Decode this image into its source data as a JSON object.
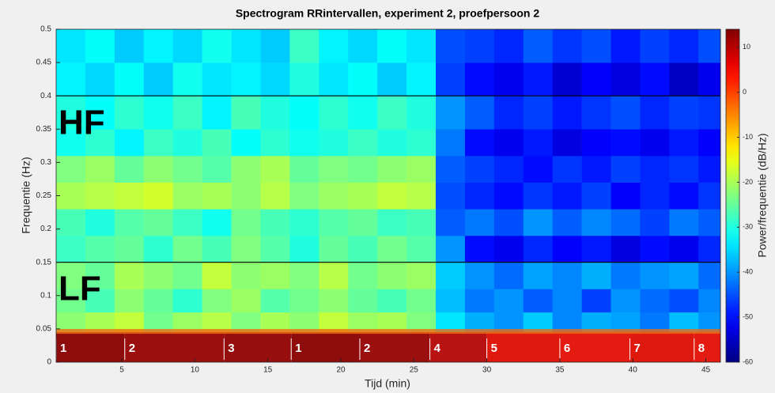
{
  "chart_data": {
    "type": "heatmap",
    "title": "Spectrogram RRintervallen, experiment 2, proefpersoon 2",
    "xlabel": "Tijd (min)",
    "ylabel": "Frequentie (Hz)",
    "colorbar_label": "Power/frequentie (dB/Hz)",
    "colormap": "jet",
    "xlim": [
      0.5,
      46
    ],
    "ylim": [
      0,
      0.5
    ],
    "clim": [
      -60,
      14
    ],
    "xticks": [
      5,
      10,
      15,
      20,
      25,
      30,
      35,
      40,
      45
    ],
    "yticks": [
      0,
      0.05,
      0.1,
      0.15,
      0.2,
      0.25,
      0.3,
      0.35,
      0.4,
      0.45,
      0.5
    ],
    "cticks": [
      -60,
      -50,
      -40,
      -30,
      -20,
      -10,
      0,
      10
    ],
    "xbins": [
      0.5,
      2.5,
      4.5,
      6.5,
      8.5,
      10.5,
      12.5,
      14.5,
      16.5,
      18.5,
      20.5,
      22.5,
      24.5,
      26.5,
      28.5,
      30.5,
      32.5,
      34.5,
      36.5,
      38.5,
      40.5,
      42.5,
      44.5,
      46
    ],
    "ybins": [
      0.045,
      0.075,
      0.11,
      0.15,
      0.19,
      0.23,
      0.27,
      0.31,
      0.35,
      0.4,
      0.45,
      0.5
    ],
    "z": [
      [
        -22,
        -20,
        -18,
        -24,
        -21,
        -19,
        -23,
        -20,
        -22,
        -18,
        -21,
        -20,
        -23,
        -34,
        -38,
        -40,
        -36,
        -41,
        -38,
        -39,
        -42,
        -37,
        -40
      ],
      [
        -24,
        -27,
        -22,
        -25,
        -29,
        -23,
        -21,
        -26,
        -24,
        -22,
        -25,
        -27,
        -24,
        -37,
        -42,
        -40,
        -44,
        -41,
        -46,
        -40,
        -43,
        -45,
        -41
      ],
      [
        -23,
        -25,
        -20,
        -22,
        -24,
        -18,
        -22,
        -21,
        -23,
        -19,
        -24,
        -22,
        -21,
        -36,
        -40,
        -43,
        -39,
        -41,
        -38,
        -42,
        -40,
        -39,
        -43
      ],
      [
        -28,
        -26,
        -25,
        -29,
        -24,
        -27,
        -23,
        -26,
        -30,
        -25,
        -27,
        -24,
        -26,
        -40,
        -50,
        -52,
        -48,
        -51,
        -49,
        -53,
        -50,
        -52,
        -48
      ],
      [
        -27,
        -30,
        -26,
        -25,
        -28,
        -31,
        -24,
        -27,
        -29,
        -26,
        -25,
        -28,
        -27,
        -44,
        -42,
        -45,
        -40,
        -44,
        -41,
        -43,
        -46,
        -42,
        -44
      ],
      [
        -20,
        -19,
        -18,
        -17,
        -21,
        -20,
        -22,
        -19,
        -23,
        -21,
        -20,
        -18,
        -19,
        -45,
        -48,
        -50,
        -47,
        -49,
        -46,
        -51,
        -48,
        -50,
        -47
      ],
      [
        -23,
        -21,
        -25,
        -22,
        -24,
        -26,
        -22,
        -20,
        -25,
        -23,
        -24,
        -22,
        -21,
        -44,
        -46,
        -48,
        -50,
        -47,
        -49,
        -46,
        -48,
        -47,
        -49
      ],
      [
        -31,
        -29,
        -33,
        -28,
        -30,
        -27,
        -32,
        -29,
        -31,
        -30,
        -28,
        -30,
        -29,
        -42,
        -50,
        -52,
        -49,
        -53,
        -51,
        -50,
        -52,
        -49,
        -51
      ],
      [
        -30,
        -32,
        -29,
        -31,
        -28,
        -33,
        -27,
        -30,
        -32,
        -29,
        -31,
        -28,
        -30,
        -40,
        -44,
        -48,
        -46,
        -49,
        -47,
        -45,
        -48,
        -46,
        -47
      ],
      [
        -33,
        -35,
        -32,
        -36,
        -31,
        -34,
        -33,
        -35,
        -30,
        -34,
        -32,
        -36,
        -33,
        -46,
        -50,
        -52,
        -49,
        -54,
        -51,
        -53,
        -50,
        -55,
        -52
      ],
      [
        -34,
        -32,
        -36,
        -33,
        -35,
        -31,
        -34,
        -36,
        -28,
        -33,
        -35,
        -32,
        -34,
        -45,
        -46,
        -48,
        -44,
        -47,
        -45,
        -49,
        -46,
        -48,
        -45
      ]
    ],
    "hlines": [
      0.15,
      0.4
    ],
    "annotations": [
      "HF",
      "LF"
    ],
    "segments": [
      {
        "label": "1",
        "start": 0.5,
        "color": "#8e0c0c"
      },
      {
        "label": "2",
        "start": 5.2,
        "color": "#9c0f0f"
      },
      {
        "label": "3",
        "start": 12,
        "color": "#960e0e"
      },
      {
        "label": "1",
        "start": 16.6,
        "color": "#8e0c0c"
      },
      {
        "label": "2",
        "start": 21.3,
        "color": "#9c0f0f"
      },
      {
        "label": "4",
        "start": 26.1,
        "color": "#b81212"
      },
      {
        "label": "5",
        "start": 30,
        "color": "#e0190f"
      },
      {
        "label": "6",
        "start": 35,
        "color": "#e31b10"
      },
      {
        "label": "7",
        "start": 39.8,
        "color": "#e0190f"
      },
      {
        "label": "8",
        "start": 44.2,
        "color": "#e31b10"
      }
    ]
  }
}
